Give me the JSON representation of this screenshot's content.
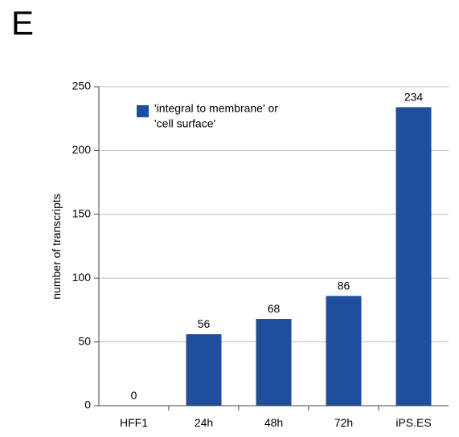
{
  "panel_label": "E",
  "chart_data": {
    "type": "bar",
    "categories": [
      "HFF1",
      "24h",
      "48h",
      "72h",
      "iPS.ES"
    ],
    "series": [
      {
        "name_lines": [
          "'integral to membrane' or",
          "'cell surface'"
        ],
        "values": [
          0,
          56,
          68,
          86,
          234
        ],
        "color": "#1f4e9c"
      }
    ],
    "data_labels": [
      "0",
      "56",
      "68",
      "86",
      "234"
    ],
    "title": "",
    "xlabel": "",
    "ylabel": "number of transcripts",
    "ylim": [
      0,
      250
    ],
    "yticks": [
      0,
      50,
      100,
      150,
      200,
      250
    ],
    "grid": "horizontal",
    "gridColor": "#bbbbbb",
    "legend_position": "top-left"
  }
}
